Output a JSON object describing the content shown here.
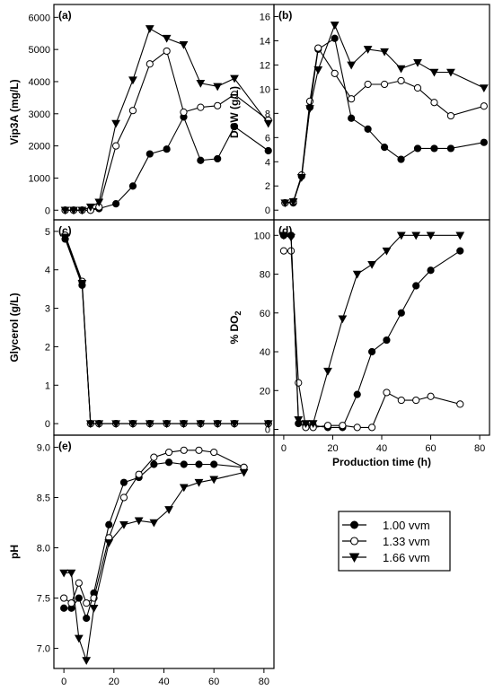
{
  "legend": {
    "entries": [
      {
        "label": "1.00 vvm",
        "marker": "circle-filled"
      },
      {
        "label": "1.33 vvm",
        "marker": "circle-open"
      },
      {
        "label": "1.66 vvm",
        "marker": "triangle-down-filled"
      }
    ]
  },
  "chart_data": [
    {
      "panel": "(a)",
      "type": "line",
      "ylabel": "Vip3A (mg/L)",
      "ylim": [
        -300,
        6400
      ],
      "yticks": [
        0,
        1000,
        2000,
        3000,
        4000,
        5000,
        6000
      ],
      "xlim": [
        -4,
        74
      ],
      "series": [
        {
          "name": "1.00 vvm",
          "x": [
            0,
            3,
            6,
            9,
            12,
            18,
            24,
            30,
            36,
            42,
            48,
            54,
            60,
            72
          ],
          "y": [
            0,
            0,
            0,
            0,
            50,
            200,
            750,
            1750,
            1900,
            2900,
            1550,
            1600,
            2600,
            1850
          ]
        },
        {
          "name": "1.33 vvm",
          "x": [
            0,
            3,
            6,
            9,
            12,
            18,
            24,
            30,
            36,
            42,
            48,
            54,
            60,
            72
          ],
          "y": [
            0,
            0,
            0,
            0,
            100,
            2000,
            3100,
            4550,
            4950,
            3050,
            3200,
            3250,
            3600,
            2800
          ]
        },
        {
          "name": "1.66 vvm",
          "x": [
            0,
            3,
            6,
            9,
            12,
            18,
            24,
            30,
            36,
            42,
            48,
            54,
            60,
            72
          ],
          "y": [
            0,
            0,
            0,
            100,
            250,
            2700,
            4050,
            5650,
            5350,
            5150,
            3950,
            3850,
            4100,
            2700
          ]
        }
      ]
    },
    {
      "panel": "(b)",
      "type": "line",
      "ylabel": "DCW (g/L)",
      "ylim": [
        -0.8,
        17
      ],
      "yticks": [
        0,
        2,
        4,
        6,
        8,
        10,
        12,
        14,
        16
      ],
      "xlim": [
        -4,
        74
      ],
      "series": [
        {
          "name": "1.00 vvm",
          "x": [
            0,
            3,
            6,
            9,
            12,
            18,
            24,
            30,
            36,
            42,
            48,
            54,
            60,
            72
          ],
          "y": [
            0.6,
            0.6,
            2.8,
            8.5,
            13.3,
            14.2,
            7.6,
            6.7,
            5.2,
            4.2,
            5.1,
            5.1,
            5.1,
            5.6
          ]
        },
        {
          "name": "1.33 vvm",
          "x": [
            0,
            3,
            6,
            9,
            12,
            18,
            24,
            30,
            36,
            42,
            48,
            54,
            60,
            72
          ],
          "y": [
            0.6,
            0.7,
            2.9,
            9.0,
            13.4,
            11.3,
            9.2,
            10.4,
            10.4,
            10.7,
            10.1,
            8.9,
            7.8,
            8.6
          ]
        },
        {
          "name": "1.66 vvm",
          "x": [
            0,
            3,
            6,
            9,
            12,
            18,
            24,
            30,
            36,
            42,
            48,
            54,
            60,
            72
          ],
          "y": [
            0.6,
            0.7,
            2.7,
            8.4,
            11.6,
            15.3,
            12.0,
            13.3,
            13.1,
            11.7,
            12.2,
            11.4,
            11.4,
            10.1
          ]
        }
      ]
    },
    {
      "panel": "(c)",
      "type": "line",
      "ylabel": "Glycerol (g/L)",
      "ylim": [
        -0.3,
        5.3
      ],
      "yticks": [
        0,
        1,
        2,
        3,
        4,
        5
      ],
      "xlim": [
        -4,
        74
      ],
      "series": [
        {
          "name": "1.00 vvm",
          "x": [
            0,
            6,
            9,
            12,
            18,
            24,
            30,
            36,
            42,
            48,
            54,
            60,
            72
          ],
          "y": [
            4.8,
            3.6,
            0,
            0,
            0,
            0,
            0,
            0,
            0,
            0,
            0,
            0,
            0
          ]
        },
        {
          "name": "1.33 vvm",
          "x": [
            0,
            6,
            9,
            12,
            18,
            24,
            30,
            36,
            42,
            48,
            54,
            60,
            72
          ],
          "y": [
            4.9,
            3.7,
            0,
            0,
            0,
            0,
            0,
            0,
            0,
            0,
            0,
            0,
            0
          ]
        },
        {
          "name": "1.66 vvm",
          "x": [
            0,
            6,
            9,
            12,
            18,
            24,
            30,
            36,
            42,
            48,
            54,
            60,
            72
          ],
          "y": [
            4.85,
            3.65,
            0,
            0,
            0,
            0,
            0,
            0,
            0,
            0,
            0,
            0,
            0
          ]
        }
      ]
    },
    {
      "panel": "(d)",
      "type": "line",
      "ylabel": "% DO2",
      "xlabel": "Production time (h)",
      "ylim": [
        -3,
        108
      ],
      "yticks": [
        0,
        20,
        40,
        60,
        80,
        100
      ],
      "xlim": [
        -4,
        84
      ],
      "xticks": [
        0,
        20,
        40,
        60,
        80
      ],
      "series": [
        {
          "name": "1.00 vvm",
          "x": [
            0,
            3,
            6,
            9,
            12,
            18,
            24,
            30,
            36,
            42,
            48,
            54,
            60,
            72
          ],
          "y": [
            100,
            100,
            3,
            2,
            2,
            1,
            1,
            18,
            40,
            46,
            60,
            74,
            82,
            92
          ]
        },
        {
          "name": "1.33 vvm",
          "x": [
            0,
            3,
            6,
            9,
            12,
            18,
            24,
            30,
            36,
            42,
            48,
            54,
            60,
            72
          ],
          "y": [
            92,
            92,
            24,
            1,
            1,
            2,
            2,
            1,
            1,
            19,
            15,
            15,
            17,
            13
          ]
        },
        {
          "name": "1.66 vvm",
          "x": [
            0,
            3,
            6,
            9,
            12,
            18,
            24,
            30,
            36,
            42,
            48,
            54,
            60,
            72
          ],
          "y": [
            100,
            99,
            5,
            3,
            3,
            30,
            57,
            80,
            85,
            92,
            100,
            100,
            100,
            100
          ]
        }
      ]
    },
    {
      "panel": "(e)",
      "type": "line",
      "ylabel": "pH",
      "xlabel": "Production time (h)",
      "ylim": [
        6.8,
        9.12
      ],
      "yticks": [
        7.0,
        7.5,
        8.0,
        8.5,
        9.0
      ],
      "xlim": [
        -4,
        84
      ],
      "xticks": [
        0,
        20,
        40,
        60,
        80
      ],
      "series": [
        {
          "name": "1.00 vvm",
          "x": [
            0,
            3,
            6,
            9,
            12,
            18,
            24,
            30,
            36,
            42,
            48,
            54,
            60,
            72
          ],
          "y": [
            7.4,
            7.4,
            7.5,
            7.3,
            7.55,
            8.23,
            8.65,
            8.7,
            8.83,
            8.85,
            8.83,
            8.83,
            8.83,
            8.8
          ]
        },
        {
          "name": "1.33 vvm",
          "x": [
            0,
            3,
            6,
            9,
            12,
            18,
            24,
            30,
            36,
            42,
            48,
            54,
            60,
            72
          ],
          "y": [
            7.5,
            7.45,
            7.65,
            7.45,
            7.5,
            8.1,
            8.5,
            8.73,
            8.9,
            8.95,
            8.97,
            8.97,
            8.95,
            8.8
          ]
        },
        {
          "name": "1.66 vvm",
          "x": [
            0,
            3,
            6,
            9,
            12,
            18,
            24,
            30,
            36,
            42,
            48,
            54,
            60,
            72
          ],
          "y": [
            7.75,
            7.75,
            7.1,
            6.88,
            7.4,
            8.05,
            8.23,
            8.27,
            8.25,
            8.38,
            8.6,
            8.65,
            8.68,
            8.75
          ]
        }
      ]
    }
  ]
}
